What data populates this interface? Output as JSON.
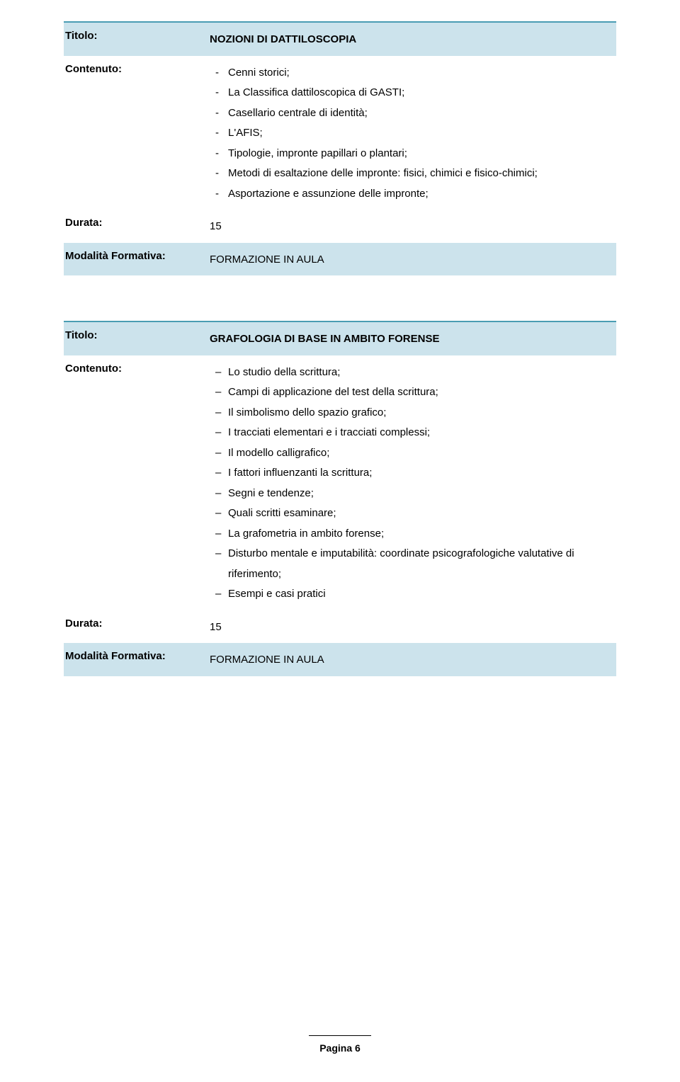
{
  "page": {
    "footer_label": "Pagina 6"
  },
  "labels": {
    "titolo": "Titolo:",
    "contenuto": "Contenuto:",
    "durata": "Durata:",
    "modalita": "Modalità Formativa:"
  },
  "colors": {
    "accent_border": "#4a9db3",
    "row_blue_bg": "#cce3ec",
    "text": "#000000",
    "page_bg": "#ffffff"
  },
  "typography": {
    "base_font_size_pt": 11,
    "title_weight": "bold",
    "label_weight": "bold",
    "line_height": 1.9
  },
  "section1": {
    "title": "NOZIONI DI DATTILOSCOPIA",
    "content_bullet": "dash",
    "content": [
      "Cenni storici;",
      "La Classifica dattiloscopica di GASTI;",
      "Casellario centrale di identità;",
      "L'AFIS;",
      "Tipologie, impronte papillari o plantari;",
      "Metodi di esaltazione delle impronte: fisici, chimici e fisico-chimici;",
      "Asportazione e assunzione delle impronte;"
    ],
    "durata": "15",
    "modalita": "FORMAZIONE IN AULA"
  },
  "section2": {
    "title": "GRAFOLOGIA DI BASE IN AMBITO FORENSE",
    "content_bullet": "endash",
    "content": [
      "Lo studio della scrittura;",
      "Campi di applicazione del test della scrittura;",
      "Il simbolismo dello spazio grafico;",
      "I tracciati elementari e i tracciati complessi;",
      "Il modello calligrafico;",
      "I fattori influenzanti la scrittura;",
      "Segni e tendenze;",
      "Quali scritti esaminare;",
      "La grafometria in ambito forense;",
      "Disturbo mentale e imputabilità: coordinate psicografologiche valutative di riferimento;",
      "Esempi e casi pratici"
    ],
    "durata": "15",
    "modalita": "FORMAZIONE IN AULA"
  }
}
